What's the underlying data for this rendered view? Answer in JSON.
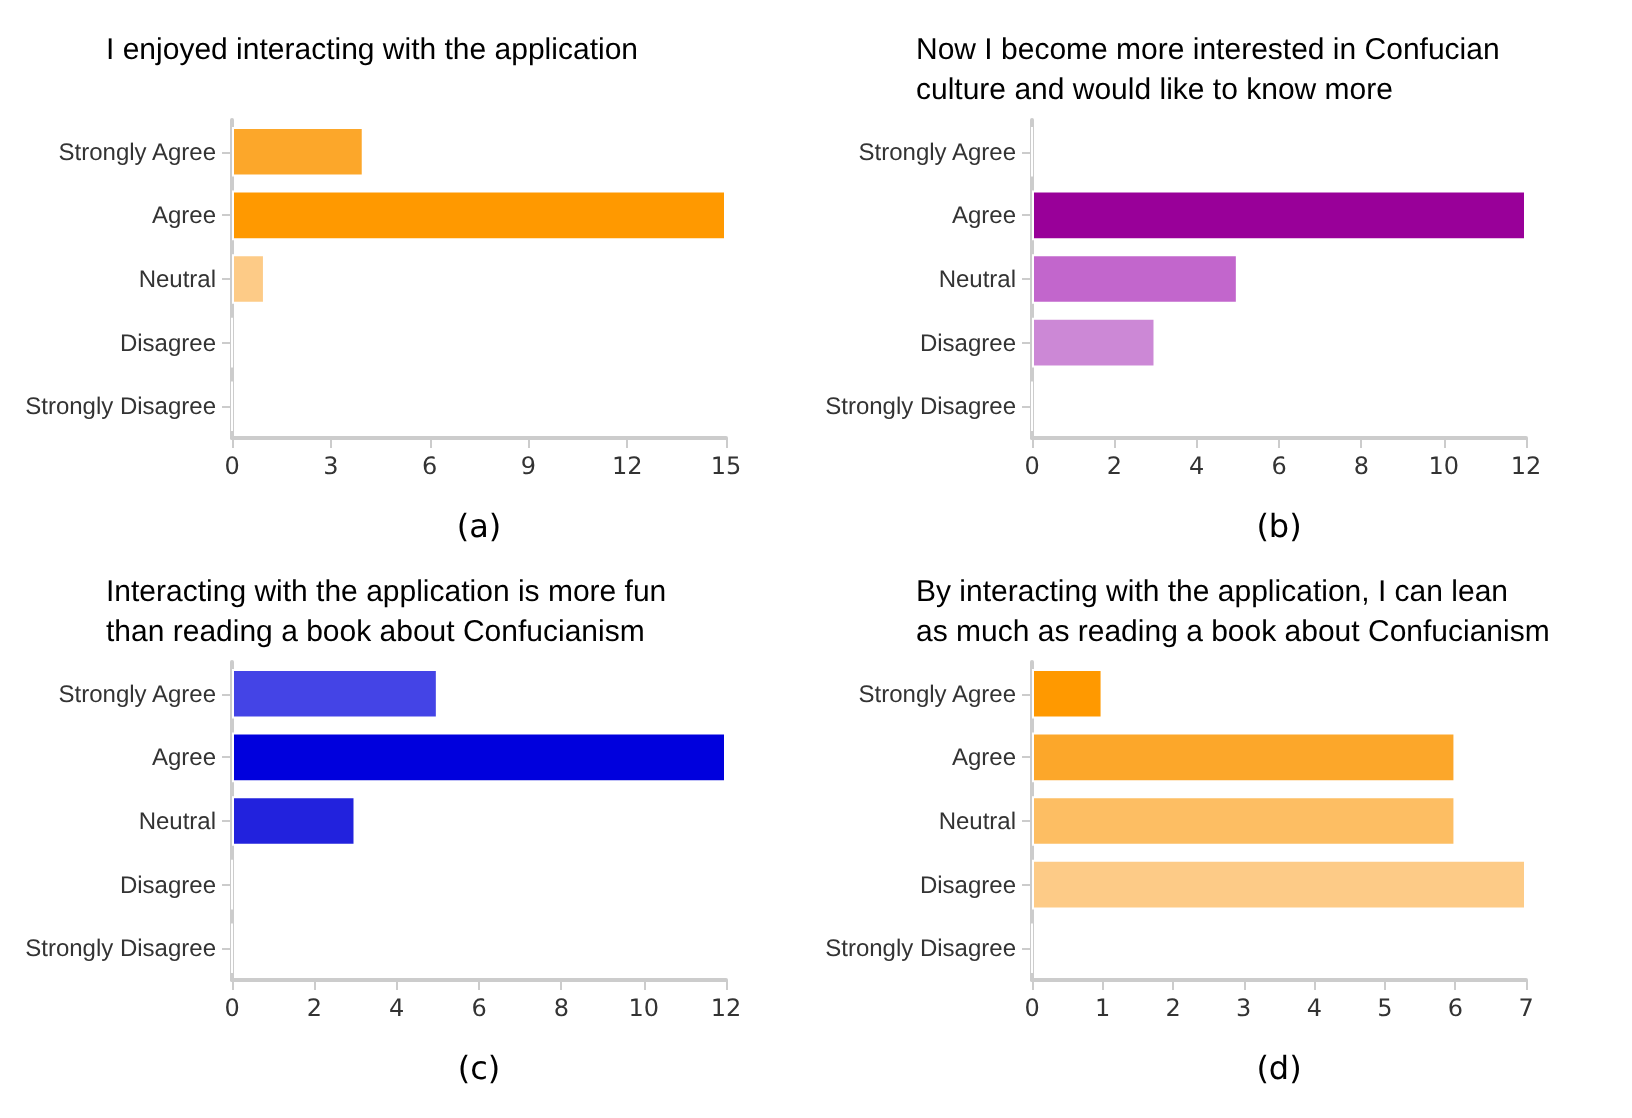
{
  "chart_data": [
    {
      "type": "bar",
      "orientation": "horizontal",
      "title": "I enjoyed interacting with the application",
      "xlabel": "(a)",
      "categories": [
        "Strongly Agree",
        "Agree",
        "Neutral",
        "Disagree",
        "Strongly Disagree"
      ],
      "values": [
        4,
        15,
        1,
        0,
        0
      ],
      "colors": [
        "#fca72a",
        "#ff9900",
        "#fdcb87",
        null,
        null
      ],
      "xlim": [
        0,
        15
      ],
      "xticks": [
        0,
        3,
        6,
        9,
        12,
        15
      ],
      "grid": false
    },
    {
      "type": "bar",
      "orientation": "horizontal",
      "title": "Now I become more interested in Confucian\nculture and would like to know more",
      "xlabel": "(b)",
      "categories": [
        "Strongly Agree",
        "Agree",
        "Neutral",
        "Disagree",
        "Strongly Disagree"
      ],
      "values": [
        0,
        12,
        5,
        3,
        0
      ],
      "colors": [
        null,
        "#990099",
        "#c266cc",
        "#cc88d6",
        null
      ],
      "xlim": [
        0,
        12
      ],
      "xticks": [
        0,
        2,
        4,
        6,
        8,
        10,
        12
      ],
      "grid": false
    },
    {
      "type": "bar",
      "orientation": "horizontal",
      "title": "Interacting with the application is more fun\nthan reading a book about Confucianism",
      "xlabel": "(c)",
      "categories": [
        "Strongly Agree",
        "Agree",
        "Neutral",
        "Disagree",
        "Strongly Disagree"
      ],
      "values": [
        5,
        12,
        3,
        0,
        0
      ],
      "colors": [
        "#4444e6",
        "#0000dd",
        "#2222dd",
        null,
        null
      ],
      "xlim": [
        0,
        12
      ],
      "xticks": [
        0,
        2,
        4,
        6,
        8,
        10,
        12
      ],
      "grid": false
    },
    {
      "type": "bar",
      "orientation": "horizontal",
      "title": "By interacting with the application, I can lean\nas much as reading a book about Confucianism",
      "xlabel": "(d)",
      "categories": [
        "Strongly Agree",
        "Agree",
        "Neutral",
        "Disagree",
        "Strongly Disagree"
      ],
      "values": [
        1,
        6,
        6,
        7,
        0
      ],
      "colors": [
        "#ff9900",
        "#fca72a",
        "#fdbe63",
        "#fdcb87",
        null
      ],
      "xlim": [
        0,
        7
      ],
      "xticks": [
        0,
        1,
        2,
        3,
        4,
        5,
        6,
        7
      ],
      "grid": false
    }
  ]
}
